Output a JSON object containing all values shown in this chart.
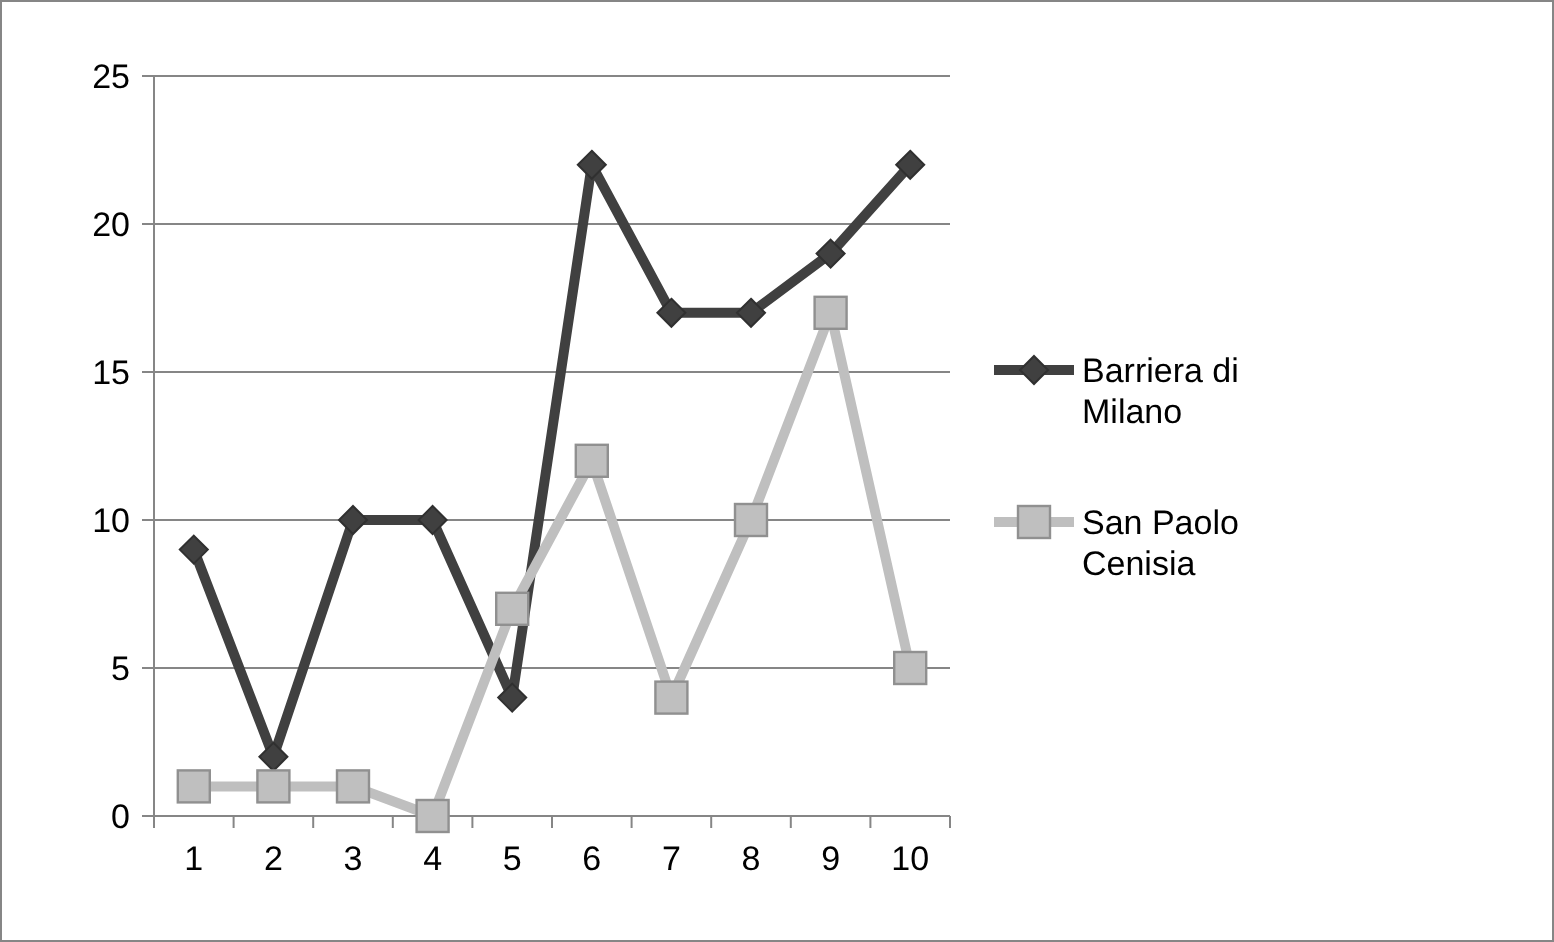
{
  "chart_data": {
    "type": "line",
    "categories": [
      "1",
      "2",
      "3",
      "4",
      "5",
      "6",
      "7",
      "8",
      "9",
      "10"
    ],
    "series": [
      {
        "name": "Barriera di Milano",
        "color": "#404040",
        "marker": "diamond",
        "values": [
          9,
          2,
          10,
          10,
          4,
          22,
          17,
          17,
          19,
          22
        ]
      },
      {
        "name": "San Paolo Cenisia",
        "color": "#bfbfbf",
        "marker": "square",
        "values": [
          1,
          1,
          1,
          0,
          7,
          12,
          4,
          10,
          17,
          5
        ]
      }
    ],
    "ylim": [
      0,
      25
    ],
    "yticks": [
      0,
      5,
      10,
      15,
      20,
      25
    ],
    "grid": "y",
    "legend": "right",
    "line_style": "solid"
  }
}
